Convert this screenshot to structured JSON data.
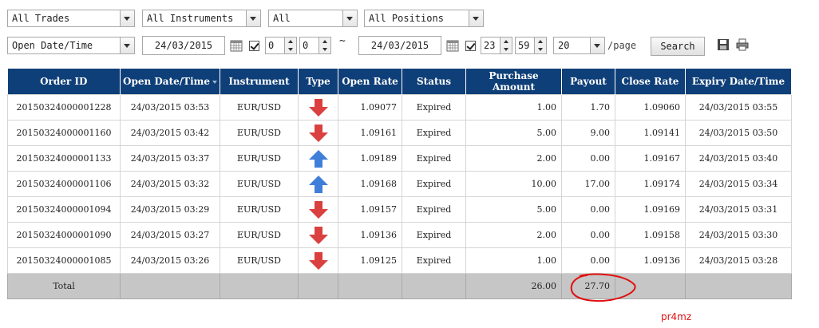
{
  "filters": {
    "trades": "All Trades",
    "instruments": "All Instruments",
    "all": "All",
    "positions": "All Positions",
    "date_field": "Open Date/Time",
    "from_date": "24/03/2015",
    "from_hour": "0",
    "from_minute": "0",
    "separator": "~",
    "to_date": "24/03/2015",
    "to_hour": "23",
    "to_minute": "59",
    "page_size": "20",
    "per_page_label": "/page",
    "search_label": "Search"
  },
  "table": {
    "headers": [
      "Order ID",
      "Open Date/Time",
      "Instrument",
      "Type",
      "Open Rate",
      "Status",
      "Purchase Amount",
      "Payout",
      "Close Rate",
      "Expiry Date/Time"
    ],
    "sorted_column": "Open Date/Time",
    "rows": [
      {
        "order_id": "20150324000001228",
        "open_time": "24/03/2015 03:53",
        "instrument": "EUR/USD",
        "type": "down",
        "open_rate": "1.09077",
        "status": "Expired",
        "amount": "1.00",
        "payout": "1.70",
        "close_rate": "1.09060",
        "expiry": "24/03/2015 03:55"
      },
      {
        "order_id": "20150324000001160",
        "open_time": "24/03/2015 03:42",
        "instrument": "EUR/USD",
        "type": "down",
        "open_rate": "1.09161",
        "status": "Expired",
        "amount": "5.00",
        "payout": "9.00",
        "close_rate": "1.09141",
        "expiry": "24/03/2015 03:50"
      },
      {
        "order_id": "20150324000001133",
        "open_time": "24/03/2015 03:37",
        "instrument": "EUR/USD",
        "type": "up",
        "open_rate": "1.09189",
        "status": "Expired",
        "amount": "2.00",
        "payout": "0.00",
        "close_rate": "1.09167",
        "expiry": "24/03/2015 03:40"
      },
      {
        "order_id": "20150324000001106",
        "open_time": "24/03/2015 03:32",
        "instrument": "EUR/USD",
        "type": "up",
        "open_rate": "1.09168",
        "status": "Expired",
        "amount": "10.00",
        "payout": "17.00",
        "close_rate": "1.09174",
        "expiry": "24/03/2015 03:34"
      },
      {
        "order_id": "20150324000001094",
        "open_time": "24/03/2015 03:29",
        "instrument": "EUR/USD",
        "type": "down",
        "open_rate": "1.09157",
        "status": "Expired",
        "amount": "5.00",
        "payout": "0.00",
        "close_rate": "1.09169",
        "expiry": "24/03/2015 03:31"
      },
      {
        "order_id": "20150324000001090",
        "open_time": "24/03/2015 03:27",
        "instrument": "EUR/USD",
        "type": "down",
        "open_rate": "1.09136",
        "status": "Expired",
        "amount": "2.00",
        "payout": "0.00",
        "close_rate": "1.09158",
        "expiry": "24/03/2015 03:30"
      },
      {
        "order_id": "20150324000001085",
        "open_time": "24/03/2015 03:26",
        "instrument": "EUR/USD",
        "type": "down",
        "open_rate": "1.09125",
        "status": "Expired",
        "amount": "1.00",
        "payout": "0.00",
        "close_rate": "1.09136",
        "expiry": "24/03/2015 03:28"
      }
    ],
    "total": {
      "label": "Total",
      "amount": "26.00",
      "payout": "27.70"
    }
  },
  "icons": {
    "down_arrow_color": "#d9403f",
    "up_arrow_color": "#3f7fd9",
    "calendar": "calendar-icon",
    "export": "save-icon",
    "print": "print-icon"
  },
  "watermark": "pr4mz"
}
